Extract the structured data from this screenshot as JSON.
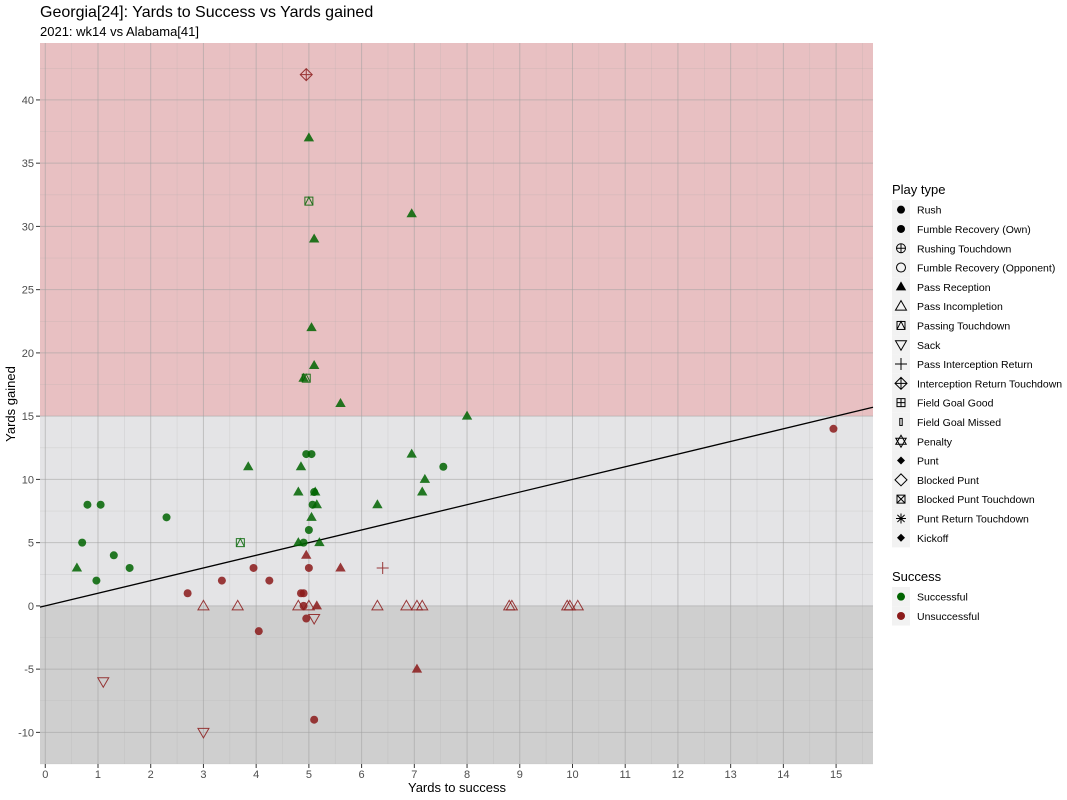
{
  "chart_data": {
    "type": "scatter",
    "title": "Georgia[24]: Yards to Success vs Yards gained",
    "subtitle": "2021: wk14 vs Alabama[41]",
    "xlabel": "Yards to success",
    "ylabel": "Yards gained",
    "xlim": [
      -0.1,
      15.7
    ],
    "ylim": [
      -12.5,
      44.5
    ],
    "x_ticks": [
      "0",
      "1",
      "2",
      "3",
      "4",
      "5",
      "6",
      "7",
      "8",
      "9",
      "10",
      "11",
      "12",
      "13",
      "14",
      "15"
    ],
    "y_ticks": [
      "-10",
      "-5",
      "0",
      "5",
      "10",
      "15",
      "20",
      "25",
      "30",
      "35",
      "40"
    ],
    "grid": true,
    "regions": [
      {
        "y_from": 15,
        "y_to": 44.5,
        "color": "#e8c0c2"
      },
      {
        "y_from": 0,
        "y_to": 15,
        "color": "#e4e4e6"
      },
      {
        "y_from": -12.5,
        "y_to": 0,
        "color": "#cfcfcf"
      }
    ],
    "reference_line": {
      "slope": 1,
      "intercept": 0
    },
    "colors": {
      "Successful": "#006400",
      "Unsuccessful": "#8b1a1a"
    },
    "legend_placement": "right",
    "legend_play_type_title": "Play type",
    "legend_success_title": "Success",
    "play_types": [
      {
        "name": "Rush",
        "shape": "circle"
      },
      {
        "name": "Fumble Recovery (Own)",
        "shape": "circle"
      },
      {
        "name": "Rushing Touchdown",
        "shape": "circle-plus"
      },
      {
        "name": "Fumble Recovery (Opponent)",
        "shape": "circle-open"
      },
      {
        "name": "Pass Reception",
        "shape": "triangle"
      },
      {
        "name": "Pass Incompletion",
        "shape": "triangle-open"
      },
      {
        "name": "Passing Touchdown",
        "shape": "square-triangle"
      },
      {
        "name": "Sack",
        "shape": "triangle-down-open"
      },
      {
        "name": "Pass Interception Return",
        "shape": "plus"
      },
      {
        "name": "Interception Return Touchdown",
        "shape": "diamond-plus"
      },
      {
        "name": "Field Goal Good",
        "shape": "square-plus"
      },
      {
        "name": "Field Goal Missed",
        "shape": "small-rect"
      },
      {
        "name": "Penalty",
        "shape": "star-of-david"
      },
      {
        "name": "Punt",
        "shape": "diamond-small"
      },
      {
        "name": "Blocked Punt",
        "shape": "diamond-open"
      },
      {
        "name": "Blocked Punt Touchdown",
        "shape": "square-x"
      },
      {
        "name": "Punt Return Touchdown",
        "shape": "asterisk"
      },
      {
        "name": "Kickoff",
        "shape": "diamond-small"
      }
    ],
    "success_levels": [
      "Successful",
      "Unsuccessful"
    ],
    "points": [
      {
        "x": 0.6,
        "y": 3,
        "type": "Pass Reception",
        "success": "Successful"
      },
      {
        "x": 0.7,
        "y": 5,
        "type": "Rush",
        "success": "Successful"
      },
      {
        "x": 0.8,
        "y": 8,
        "type": "Rush",
        "success": "Successful"
      },
      {
        "x": 0.97,
        "y": 2,
        "type": "Rush",
        "success": "Successful"
      },
      {
        "x": 1.05,
        "y": 8,
        "type": "Rush",
        "success": "Successful"
      },
      {
        "x": 1.3,
        "y": 4,
        "type": "Rush",
        "success": "Successful"
      },
      {
        "x": 1.6,
        "y": 3,
        "type": "Rush",
        "success": "Successful"
      },
      {
        "x": 2.3,
        "y": 7,
        "type": "Rush",
        "success": "Successful"
      },
      {
        "x": 3.7,
        "y": 5,
        "type": "Passing Touchdown",
        "success": "Successful"
      },
      {
        "x": 3.85,
        "y": 11,
        "type": "Pass Reception",
        "success": "Successful"
      },
      {
        "x": 4.8,
        "y": 9,
        "type": "Pass Reception",
        "success": "Successful"
      },
      {
        "x": 4.8,
        "y": 5,
        "type": "Pass Reception",
        "success": "Successful"
      },
      {
        "x": 4.85,
        "y": 11,
        "type": "Pass Reception",
        "success": "Successful"
      },
      {
        "x": 4.9,
        "y": 5,
        "type": "Rush",
        "success": "Successful"
      },
      {
        "x": 4.9,
        "y": 18,
        "type": "Pass Reception",
        "success": "Successful"
      },
      {
        "x": 4.95,
        "y": 18,
        "type": "Passing Touchdown",
        "success": "Successful"
      },
      {
        "x": 4.95,
        "y": 12,
        "type": "Rush",
        "success": "Successful"
      },
      {
        "x": 5.0,
        "y": 37,
        "type": "Pass Reception",
        "success": "Successful"
      },
      {
        "x": 5.0,
        "y": 32,
        "type": "Passing Touchdown",
        "success": "Successful"
      },
      {
        "x": 5.0,
        "y": 6,
        "type": "Rush",
        "success": "Successful"
      },
      {
        "x": 5.05,
        "y": 22,
        "type": "Pass Reception",
        "success": "Successful"
      },
      {
        "x": 5.05,
        "y": 12,
        "type": "Rush",
        "success": "Successful"
      },
      {
        "x": 5.05,
        "y": 7,
        "type": "Pass Reception",
        "success": "Successful"
      },
      {
        "x": 5.07,
        "y": 8,
        "type": "Rush",
        "success": "Successful"
      },
      {
        "x": 5.1,
        "y": 9,
        "type": "Rush",
        "success": "Successful"
      },
      {
        "x": 5.1,
        "y": 19,
        "type": "Pass Reception",
        "success": "Successful"
      },
      {
        "x": 5.1,
        "y": 29,
        "type": "Pass Reception",
        "success": "Successful"
      },
      {
        "x": 5.12,
        "y": 9,
        "type": "Pass Reception",
        "success": "Successful"
      },
      {
        "x": 5.15,
        "y": 8,
        "type": "Pass Reception",
        "success": "Successful"
      },
      {
        "x": 5.2,
        "y": 5,
        "type": "Pass Reception",
        "success": "Successful"
      },
      {
        "x": 5.6,
        "y": 16,
        "type": "Pass Reception",
        "success": "Successful"
      },
      {
        "x": 6.3,
        "y": 8,
        "type": "Pass Reception",
        "success": "Successful"
      },
      {
        "x": 6.95,
        "y": 31,
        "type": "Pass Reception",
        "success": "Successful"
      },
      {
        "x": 6.95,
        "y": 12,
        "type": "Pass Reception",
        "success": "Successful"
      },
      {
        "x": 7.15,
        "y": 9,
        "type": "Pass Reception",
        "success": "Successful"
      },
      {
        "x": 7.2,
        "y": 10,
        "type": "Pass Reception",
        "success": "Successful"
      },
      {
        "x": 7.55,
        "y": 11,
        "type": "Rush",
        "success": "Successful"
      },
      {
        "x": 8.0,
        "y": 15,
        "type": "Pass Reception",
        "success": "Successful"
      },
      {
        "x": 2.7,
        "y": 1,
        "type": "Rush",
        "success": "Unsuccessful"
      },
      {
        "x": 3.0,
        "y": 0,
        "type": "Pass Incompletion",
        "success": "Unsuccessful"
      },
      {
        "x": 3.0,
        "y": -10,
        "type": "Sack",
        "success": "Unsuccessful"
      },
      {
        "x": 1.1,
        "y": -6,
        "type": "Sack",
        "success": "Unsuccessful"
      },
      {
        "x": 3.35,
        "y": 2,
        "type": "Rush",
        "success": "Unsuccessful"
      },
      {
        "x": 3.65,
        "y": 0,
        "type": "Pass Incompletion",
        "success": "Unsuccessful"
      },
      {
        "x": 3.95,
        "y": 3,
        "type": "Rush",
        "success": "Unsuccessful"
      },
      {
        "x": 4.05,
        "y": -2,
        "type": "Rush",
        "success": "Unsuccessful"
      },
      {
        "x": 4.25,
        "y": 2,
        "type": "Rush",
        "success": "Unsuccessful"
      },
      {
        "x": 4.8,
        "y": 0,
        "type": "Pass Incompletion",
        "success": "Unsuccessful"
      },
      {
        "x": 4.85,
        "y": 1,
        "type": "Rush",
        "success": "Unsuccessful"
      },
      {
        "x": 4.9,
        "y": 1,
        "type": "Rush",
        "success": "Unsuccessful"
      },
      {
        "x": 4.9,
        "y": 0,
        "type": "Rush",
        "success": "Unsuccessful"
      },
      {
        "x": 4.95,
        "y": 42,
        "type": "Interception Return Touchdown",
        "success": "Unsuccessful"
      },
      {
        "x": 4.95,
        "y": 4,
        "type": "Pass Reception",
        "success": "Unsuccessful"
      },
      {
        "x": 4.95,
        "y": -1,
        "type": "Rush",
        "success": "Unsuccessful"
      },
      {
        "x": 5.0,
        "y": 3,
        "type": "Rush",
        "success": "Unsuccessful"
      },
      {
        "x": 5.0,
        "y": 0,
        "type": "Pass Incompletion",
        "success": "Unsuccessful"
      },
      {
        "x": 5.1,
        "y": -9,
        "type": "Rush",
        "success": "Unsuccessful"
      },
      {
        "x": 5.1,
        "y": -1,
        "type": "Sack",
        "success": "Unsuccessful"
      },
      {
        "x": 5.15,
        "y": 0,
        "type": "Pass Reception",
        "success": "Unsuccessful"
      },
      {
        "x": 5.6,
        "y": 3,
        "type": "Pass Reception",
        "success": "Unsuccessful"
      },
      {
        "x": 6.3,
        "y": 0,
        "type": "Pass Incompletion",
        "success": "Unsuccessful"
      },
      {
        "x": 6.4,
        "y": 3,
        "type": "Pass Interception Return",
        "success": "Unsuccessful"
      },
      {
        "x": 6.85,
        "y": 0,
        "type": "Pass Incompletion",
        "success": "Unsuccessful"
      },
      {
        "x": 7.05,
        "y": 0,
        "type": "Pass Incompletion",
        "success": "Unsuccessful"
      },
      {
        "x": 7.05,
        "y": -5,
        "type": "Pass Reception",
        "success": "Unsuccessful"
      },
      {
        "x": 7.15,
        "y": 0,
        "type": "Pass Incompletion",
        "success": "Unsuccessful"
      },
      {
        "x": 8.8,
        "y": 0,
        "type": "Pass Incompletion",
        "success": "Unsuccessful"
      },
      {
        "x": 8.85,
        "y": 0,
        "type": "Pass Incompletion",
        "success": "Unsuccessful"
      },
      {
        "x": 9.9,
        "y": 0,
        "type": "Pass Incompletion",
        "success": "Unsuccessful"
      },
      {
        "x": 9.95,
        "y": 0,
        "type": "Pass Incompletion",
        "success": "Unsuccessful"
      },
      {
        "x": 10.1,
        "y": 0,
        "type": "Pass Incompletion",
        "success": "Unsuccessful"
      },
      {
        "x": 14.95,
        "y": 14,
        "type": "Rush",
        "success": "Unsuccessful"
      }
    ]
  }
}
